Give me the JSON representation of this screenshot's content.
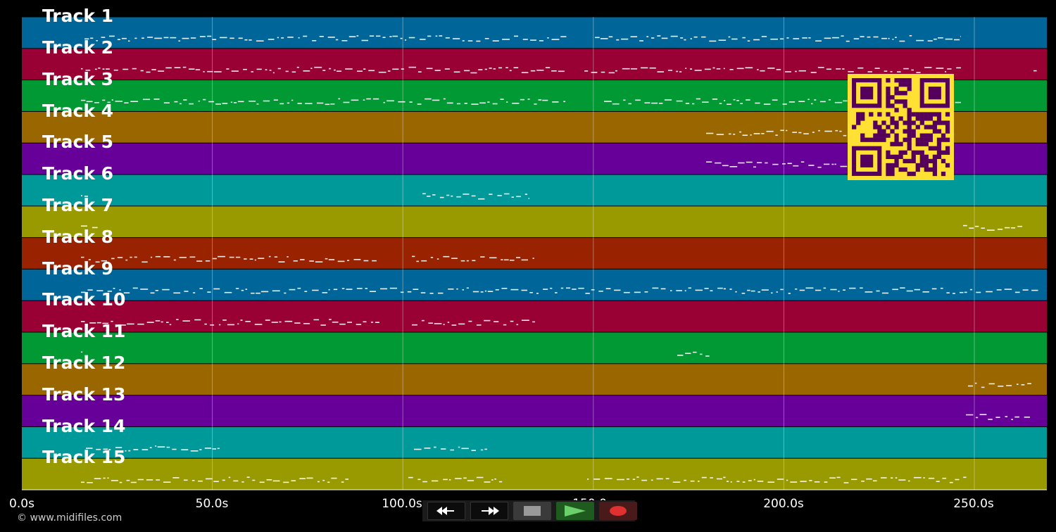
{
  "app": {
    "copyright": "© www.midifiles.com"
  },
  "colors": {
    "background": "#000000",
    "track_colors": [
      "#006699",
      "#990033",
      "#009933",
      "#996600",
      "#660099",
      "#009999",
      "#999900",
      "#992200"
    ]
  },
  "timeline": {
    "tick_labels": [
      "0.0s",
      "50.0s",
      "100.0s",
      "150.0s",
      "200.0s",
      "250.0s"
    ]
  },
  "tracks": [
    {
      "label": "Track 1",
      "color": "#006699"
    },
    {
      "label": "Track 2",
      "color": "#990033"
    },
    {
      "label": "Track 3",
      "color": "#009933"
    },
    {
      "label": "Track 4",
      "color": "#996600"
    },
    {
      "label": "Track 5",
      "color": "#660099"
    },
    {
      "label": "Track 6",
      "color": "#009999"
    },
    {
      "label": "Track 7",
      "color": "#999900"
    },
    {
      "label": "Track 8",
      "color": "#992200"
    },
    {
      "label": "Track 9",
      "color": "#006699"
    },
    {
      "label": "Track 10",
      "color": "#990033"
    },
    {
      "label": "Track 11",
      "color": "#009933"
    },
    {
      "label": "Track 12",
      "color": "#996600"
    },
    {
      "label": "Track 13",
      "color": "#660099"
    },
    {
      "label": "Track 14",
      "color": "#009999"
    },
    {
      "label": "Track 15",
      "color": "#999900"
    }
  ],
  "transport": {
    "buttons": [
      {
        "name": "rewind-button",
        "icon": "rewind-icon"
      },
      {
        "name": "fast-forward-button",
        "icon": "fast-forward-icon"
      },
      {
        "name": "stop-button",
        "icon": "stop-icon"
      },
      {
        "name": "play-button",
        "icon": "play-icon"
      },
      {
        "name": "record-button",
        "icon": "record-icon"
      }
    ]
  },
  "qr_code": {
    "icon": "qr-code-icon",
    "fg": "#55005a",
    "bg": "#ffe033"
  }
}
